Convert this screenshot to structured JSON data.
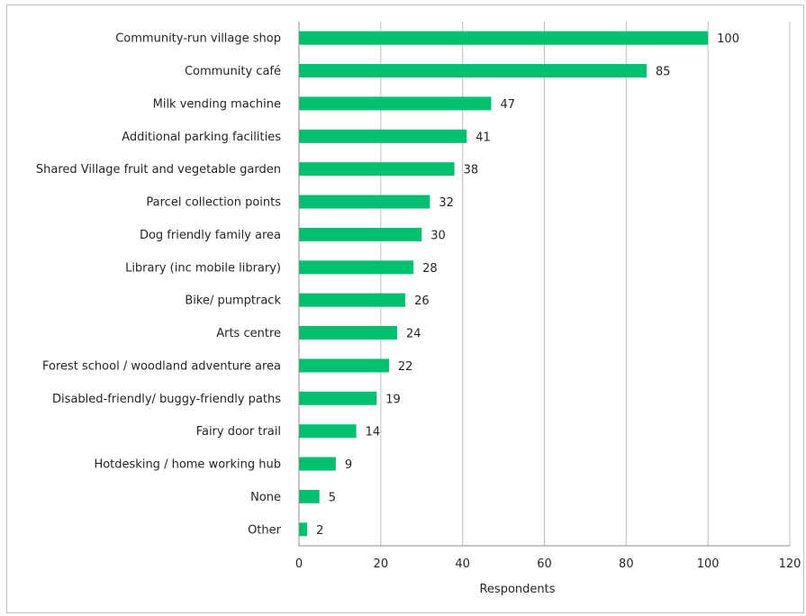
{
  "chart_data": {
    "type": "bar",
    "orientation": "horizontal",
    "categories": [
      "Community-run village shop",
      "Community café",
      "Milk vending machine",
      "Additional parking facilities",
      "Shared Village fruit and vegetable garden",
      "Parcel collection points",
      "Dog friendly family area",
      "Library (inc mobile library)",
      "Bike/ pumptrack",
      "Arts centre",
      "Forest school / woodland adventure area",
      "Disabled-friendly/ buggy-friendly paths",
      "Fairy door trail",
      "Hotdesking / home working hub",
      "None",
      "Other"
    ],
    "values": [
      100,
      85,
      47,
      41,
      38,
      32,
      30,
      28,
      26,
      24,
      22,
      19,
      14,
      9,
      5,
      2
    ],
    "xlabel": "Respondents",
    "xlim": [
      0,
      120
    ],
    "xticks": [
      0,
      20,
      40,
      60,
      80,
      100,
      120
    ],
    "grid": "vertical",
    "legend": "none",
    "bar_color": "#00bf6f"
  }
}
